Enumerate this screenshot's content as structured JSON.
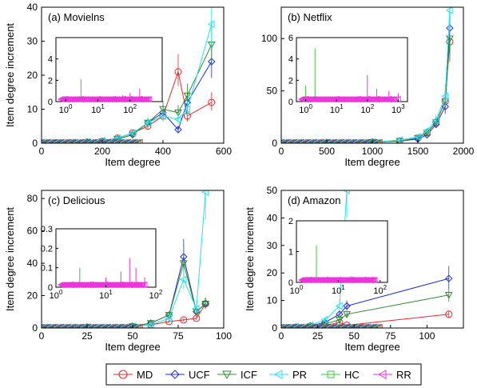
{
  "colors": {
    "MD": "#e8262a",
    "UCF": "#1f2fd4",
    "ICF": "#2e8b2e",
    "PR": "#22e2ee",
    "HC": "#33cc33",
    "RR": "#ee33dd"
  },
  "legend": {
    "entries": [
      {
        "name": "MD",
        "marker": "circle"
      },
      {
        "name": "UCF",
        "marker": "diamond"
      },
      {
        "name": "ICF",
        "marker": "triangle-down"
      },
      {
        "name": "PR",
        "marker": "triangle-left"
      },
      {
        "name": "HC",
        "marker": "square"
      },
      {
        "name": "RR",
        "marker": "triangle-left"
      }
    ]
  },
  "chart_data": [
    {
      "type": "line",
      "title": "(a) Movielns",
      "xlabel": "Item degree",
      "ylabel": "Item degree increment",
      "xlim": [
        0,
        600
      ],
      "ylim": [
        0,
        40
      ],
      "xticks": [
        0,
        200,
        400,
        600
      ],
      "yticks": [
        0,
        10,
        20,
        30,
        40
      ],
      "series": [
        {
          "name": "MD",
          "x": [
            0,
            50,
            100,
            150,
            200,
            250,
            300,
            350,
            400,
            450,
            480,
            560
          ],
          "y": [
            0,
            0,
            0.1,
            0.3,
            0.5,
            1.5,
            3,
            5,
            8,
            21,
            8,
            12
          ]
        },
        {
          "name": "UCF",
          "x": [
            0,
            50,
            100,
            150,
            200,
            250,
            300,
            350,
            400,
            450,
            480,
            560
          ],
          "y": [
            0,
            0,
            0.1,
            0.3,
            0.6,
            1.2,
            2.5,
            6,
            9,
            4,
            12,
            24
          ]
        },
        {
          "name": "ICF",
          "x": [
            0,
            50,
            100,
            150,
            200,
            250,
            300,
            350,
            400,
            450,
            480,
            560
          ],
          "y": [
            0,
            0,
            0.1,
            0.3,
            0.5,
            1.2,
            2.5,
            6,
            10,
            9,
            14,
            29
          ]
        },
        {
          "name": "PR",
          "x": [
            0,
            50,
            100,
            150,
            200,
            250,
            300,
            350,
            400,
            450,
            480,
            560
          ],
          "y": [
            0,
            0,
            0.1,
            0.4,
            0.8,
            1.5,
            3,
            6,
            8,
            7,
            10,
            35
          ]
        }
      ],
      "inset": {
        "xscale": "log",
        "xlim": [
          0.5,
          1000
        ],
        "ylim": [
          0,
          6
        ],
        "xticks": [
          "10^0",
          "10^1",
          "10^2"
        ],
        "yticks": [
          0,
          2,
          4
        ],
        "series": [
          {
            "name": "HC",
            "x": [
              1,
              3
            ],
            "y": [
              0.5,
              2.1
            ]
          },
          {
            "name": "RR",
            "x": [
              1,
              3,
              10,
              30,
              60,
              100,
              200
            ],
            "y": [
              0.2,
              0.3,
              0.4,
              0.5,
              0.6,
              0.8,
              1.2
            ]
          }
        ]
      }
    },
    {
      "type": "line",
      "title": "(b) Netflix",
      "xlabel": "Item degree",
      "ylabel": "",
      "xlim": [
        0,
        2000
      ],
      "ylim": [
        0,
        130
      ],
      "xticks": [
        0,
        500,
        1000,
        1500,
        2000
      ],
      "yticks": [
        0,
        50,
        100
      ],
      "series": [
        {
          "name": "MD",
          "x": [
            0,
            500,
            1000,
            1300,
            1500,
            1600,
            1700,
            1800,
            1850
          ],
          "y": [
            0,
            0.5,
            1,
            2,
            5,
            10,
            20,
            40,
            97
          ]
        },
        {
          "name": "UCF",
          "x": [
            0,
            500,
            1000,
            1300,
            1500,
            1600,
            1700,
            1800,
            1850
          ],
          "y": [
            0,
            0.5,
            1,
            2,
            4,
            8,
            18,
            35,
            110
          ]
        },
        {
          "name": "ICF",
          "x": [
            0,
            500,
            1000,
            1300,
            1500,
            1600,
            1700,
            1800,
            1850
          ],
          "y": [
            0,
            0.5,
            1,
            2,
            5,
            10,
            20,
            40,
            100
          ]
        },
        {
          "name": "PR",
          "x": [
            0,
            500,
            1000,
            1300,
            1500,
            1600,
            1700,
            1800,
            1850
          ],
          "y": [
            0,
            0.5,
            1,
            3,
            6,
            12,
            22,
            45,
            127
          ]
        }
      ],
      "inset": {
        "xscale": "log",
        "xlim": [
          0.5,
          2000
        ],
        "ylim": [
          0,
          6
        ],
        "xticks": [
          "10^0",
          "10^1",
          "10^2",
          "10^3"
        ],
        "yticks": [
          0,
          2,
          4,
          6
        ],
        "series": [
          {
            "name": "HC",
            "x": [
              1,
              2
            ],
            "y": [
              1.5,
              5
            ]
          },
          {
            "name": "RR",
            "x": [
              1,
              10,
              50,
              100,
              200,
              500,
              1000
            ],
            "y": [
              0.2,
              0.3,
              0.5,
              2.5,
              1.2,
              1,
              0.8
            ]
          }
        ]
      }
    },
    {
      "type": "line",
      "title": "(c) Delicious",
      "xlabel": "Item degree",
      "ylabel": "Item degree increment",
      "xlim": [
        0,
        100
      ],
      "ylim": [
        0,
        85
      ],
      "xticks": [
        0,
        25,
        50,
        75,
        100
      ],
      "yticks": [
        0,
        20,
        40,
        60,
        80
      ],
      "series": [
        {
          "name": "MD",
          "x": [
            0,
            25,
            50,
            60,
            70,
            78,
            85,
            90
          ],
          "y": [
            0,
            0.5,
            1,
            2,
            4,
            5,
            6,
            15
          ]
        },
        {
          "name": "UCF",
          "x": [
            0,
            25,
            50,
            60,
            70,
            78,
            85,
            90
          ],
          "y": [
            0,
            0.5,
            1,
            3,
            8,
            44,
            10,
            15
          ]
        },
        {
          "name": "ICF",
          "x": [
            0,
            25,
            50,
            60,
            70,
            78,
            85,
            90
          ],
          "y": [
            0,
            0.5,
            1,
            3,
            8,
            40,
            10,
            15
          ]
        },
        {
          "name": "PR",
          "x": [
            0,
            25,
            50,
            60,
            70,
            78,
            85,
            90
          ],
          "y": [
            0,
            0.5,
            1,
            2,
            6,
            30,
            12,
            84
          ]
        }
      ],
      "inset": {
        "xscale": "log",
        "xlim": [
          1,
          100
        ],
        "ylim": [
          0,
          0.3
        ],
        "xticks": [
          "10^0",
          "10^1",
          "10^2"
        ],
        "yticks": [
          0,
          0.1,
          0.2,
          0.3
        ],
        "series": [
          {
            "name": "HC",
            "x": [
              2,
              3
            ],
            "y": [
              0.02,
              0.1
            ]
          },
          {
            "name": "RR",
            "x": [
              2,
              5,
              10,
              20,
              30,
              40,
              60
            ],
            "y": [
              0.01,
              0.03,
              0.05,
              0.08,
              0.15,
              0.1,
              0.05
            ]
          }
        ]
      }
    },
    {
      "type": "line",
      "title": "(d) Amazon",
      "xlabel": "Item degree",
      "ylabel": "Item degree increment",
      "xlim": [
        0,
        125
      ],
      "ylim": [
        0,
        50
      ],
      "xticks": [
        0,
        25,
        50,
        75,
        100
      ],
      "yticks": [
        0,
        10,
        20,
        30,
        40,
        50
      ],
      "series": [
        {
          "name": "MD",
          "x": [
            0,
            10,
            20,
            30,
            40,
            45,
            115
          ],
          "y": [
            0,
            0.2,
            0.5,
            1,
            2,
            1,
            5
          ]
        },
        {
          "name": "UCF",
          "x": [
            0,
            10,
            20,
            30,
            40,
            45,
            115
          ],
          "y": [
            0,
            0.3,
            0.8,
            2,
            5,
            8,
            18
          ]
        },
        {
          "name": "ICF",
          "x": [
            0,
            10,
            20,
            30,
            40,
            45,
            115
          ],
          "y": [
            0,
            0.2,
            0.6,
            1.5,
            3,
            5,
            12
          ]
        },
        {
          "name": "PR",
          "x": [
            0,
            10,
            20,
            30,
            40,
            45
          ],
          "y": [
            0,
            0.5,
            1,
            3,
            8,
            50
          ]
        }
      ],
      "inset": {
        "xscale": "log",
        "xlim": [
          1,
          150
        ],
        "ylim": [
          0,
          2
        ],
        "xticks": [
          "10^0",
          "10^1",
          "10^2"
        ],
        "yticks": [
          0,
          1,
          2
        ],
        "series": [
          {
            "name": "HC",
            "x": [
              2,
              3
            ],
            "y": [
              0.1,
              1.2
            ]
          },
          {
            "name": "RR",
            "x": [
              2,
              5,
              10,
              20,
              40,
              60
            ],
            "y": [
              0.05,
              0.1,
              0.15,
              0.2,
              0.15,
              0.1
            ]
          }
        ]
      }
    }
  ]
}
